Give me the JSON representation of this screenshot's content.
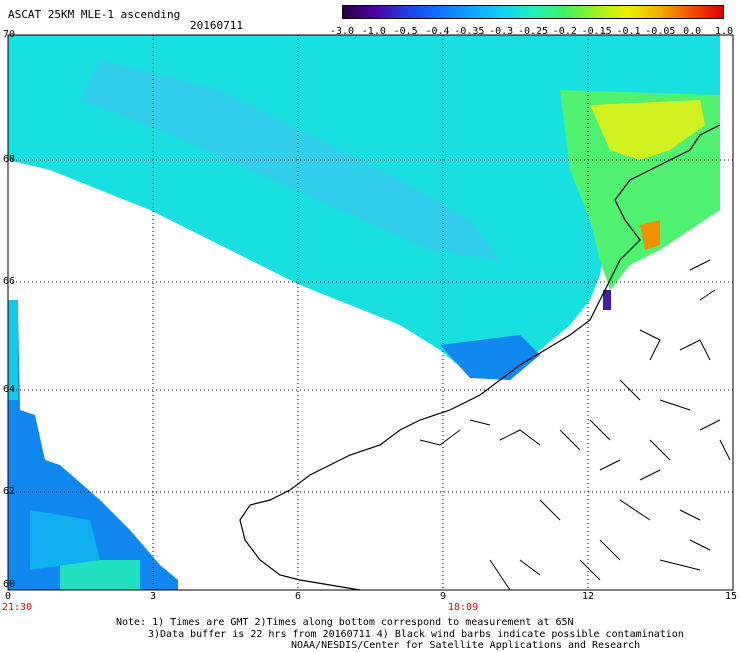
{
  "header": {
    "title": "ASCAT 25KM MLE-1 ascending",
    "date": "20160711"
  },
  "legend": {
    "ticks": [
      "-3.0",
      "-1.0",
      "-0.5",
      "-0.4",
      "-0.35",
      "-0.3",
      "-0.25",
      "-0.2",
      "-0.15",
      "-0.1",
      "-0.05",
      "0.0",
      "1.0"
    ],
    "colors": [
      "#2a0040",
      "#5000a0",
      "#2040e0",
      "#1070ff",
      "#10a0ff",
      "#10d0f0",
      "#20f0c0",
      "#40f060",
      "#a0f020",
      "#f0f000",
      "#f0b000",
      "#f05000",
      "#e00000"
    ]
  },
  "map": {
    "lat_labels": [
      "70",
      "68",
      "66",
      "64",
      "62",
      "60"
    ],
    "lon_labels": [
      "0",
      "3",
      "6",
      "9",
      "12",
      "15"
    ],
    "time_labels": [
      "21:30",
      "18:09"
    ],
    "colors": {
      "swath_main": "#18e0e0",
      "swath_blue": "#1088f0",
      "swath_green": "#50f070",
      "swath_yellow": "#d0f020",
      "coast": "#000000",
      "grid": "#000000"
    }
  },
  "notes": {
    "line1": "Note: 1) Times are GMT 2)Times along bottom correspond to measurement at 65N",
    "line2": "3)Data buffer is 22 hrs from 20160711 4) Black wind barbs indicate possible contamination",
    "line3": "NOAA/NESDIS/Center for Satellite Applications and Research"
  }
}
